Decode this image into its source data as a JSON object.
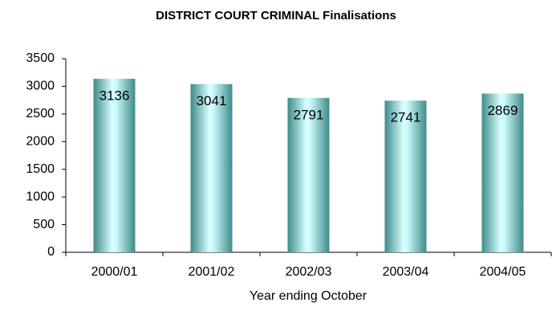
{
  "chart_data": {
    "type": "bar",
    "title": "DISTRICT COURT CRIMINAL Finalisations",
    "x_label": "Year ending October",
    "categories": [
      "2000/01",
      "2001/02",
      "2002/03",
      "2003/04",
      "2004/05"
    ],
    "values": [
      3136,
      3041,
      2791,
      2741,
      2869
    ],
    "color": "#7fd0d0",
    "ylim": [
      0,
      3500
    ],
    "yticks": [
      0,
      500,
      1000,
      1500,
      2000,
      2500,
      3000,
      3500
    ],
    "grid": false
  }
}
